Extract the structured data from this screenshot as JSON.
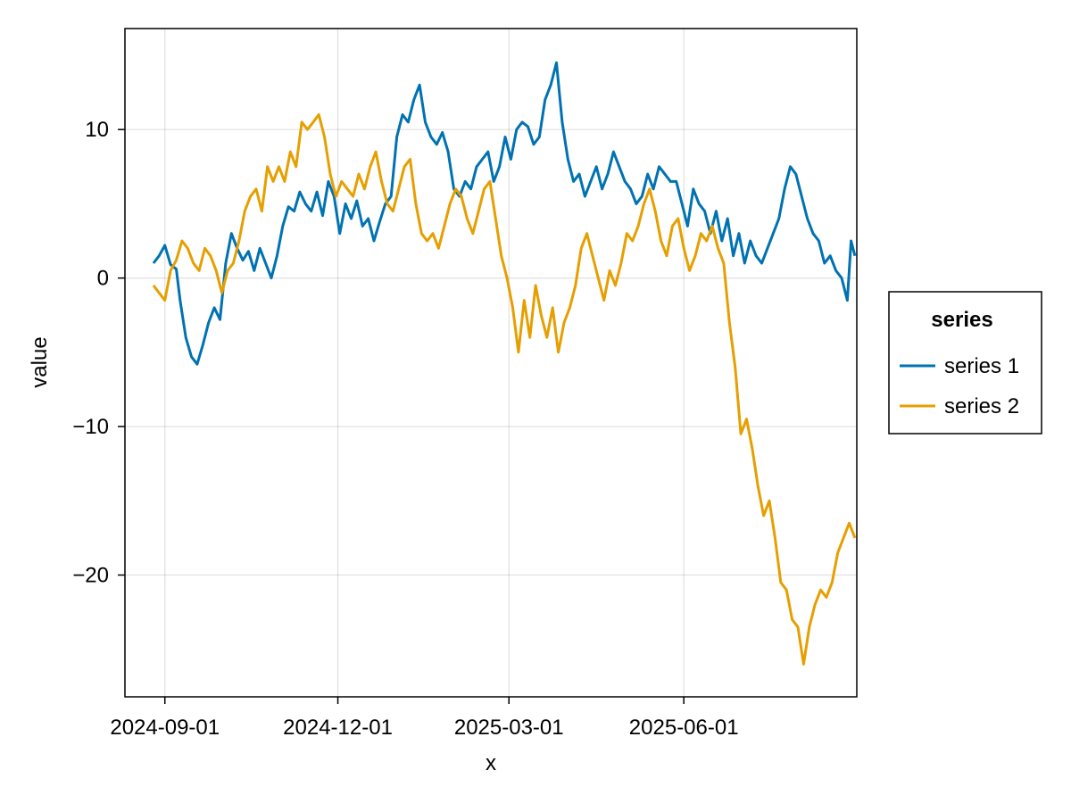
{
  "chart_data": {
    "type": "line",
    "xlabel": "x",
    "ylabel": "value",
    "x_type": "date",
    "xlim": [
      "2024-08-11",
      "2025-08-31"
    ],
    "ylim": [
      -28.2,
      16.8
    ],
    "x_ticks": [
      "2024-09-01",
      "2024-12-01",
      "2025-03-01",
      "2025-06-01"
    ],
    "y_ticks": [
      -20,
      -10,
      0,
      10
    ],
    "y_tick_labels": [
      "−20",
      "−10",
      "0",
      "10"
    ],
    "grid": true,
    "legend": {
      "title": "series",
      "placement": "right"
    },
    "series": [
      {
        "name": "series 1",
        "color": "#0072B2",
        "points": [
          [
            "2024-08-26",
            1.0
          ],
          [
            "2024-08-29",
            1.5
          ],
          [
            "2024-09-01",
            2.2
          ],
          [
            "2024-09-04",
            0.9
          ],
          [
            "2024-09-07",
            0.6
          ],
          [
            "2024-09-09",
            -1.5
          ],
          [
            "2024-09-12",
            -4.0
          ],
          [
            "2024-09-15",
            -5.3
          ],
          [
            "2024-09-18",
            -5.8
          ],
          [
            "2024-09-21",
            -4.5
          ],
          [
            "2024-09-24",
            -3.0
          ],
          [
            "2024-09-27",
            -2.0
          ],
          [
            "2024-09-30",
            -2.8
          ],
          [
            "2024-10-03",
            1.0
          ],
          [
            "2024-10-06",
            3.0
          ],
          [
            "2024-10-09",
            2.0
          ],
          [
            "2024-10-12",
            1.2
          ],
          [
            "2024-10-15",
            1.8
          ],
          [
            "2024-10-18",
            0.5
          ],
          [
            "2024-10-21",
            2.0
          ],
          [
            "2024-10-24",
            1.0
          ],
          [
            "2024-10-27",
            0.0
          ],
          [
            "2024-10-30",
            1.5
          ],
          [
            "2024-11-02",
            3.5
          ],
          [
            "2024-11-05",
            4.8
          ],
          [
            "2024-11-08",
            4.5
          ],
          [
            "2024-11-11",
            5.8
          ],
          [
            "2024-11-14",
            5.0
          ],
          [
            "2024-11-17",
            4.5
          ],
          [
            "2024-11-20",
            5.8
          ],
          [
            "2024-11-23",
            4.2
          ],
          [
            "2024-11-26",
            6.5
          ],
          [
            "2024-11-29",
            5.5
          ],
          [
            "2024-12-02",
            3.0
          ],
          [
            "2024-12-05",
            5.0
          ],
          [
            "2024-12-08",
            4.0
          ],
          [
            "2024-12-11",
            5.2
          ],
          [
            "2024-12-14",
            3.5
          ],
          [
            "2024-12-17",
            4.0
          ],
          [
            "2024-12-20",
            2.5
          ],
          [
            "2024-12-23",
            3.8
          ],
          [
            "2024-12-26",
            5.0
          ],
          [
            "2024-12-29",
            5.5
          ],
          [
            "2025-01-01",
            9.5
          ],
          [
            "2025-01-04",
            11.0
          ],
          [
            "2025-01-07",
            10.5
          ],
          [
            "2025-01-10",
            12.0
          ],
          [
            "2025-01-13",
            13.0
          ],
          [
            "2025-01-16",
            10.5
          ],
          [
            "2025-01-19",
            9.5
          ],
          [
            "2025-01-22",
            9.0
          ],
          [
            "2025-01-25",
            9.8
          ],
          [
            "2025-01-28",
            8.5
          ],
          [
            "2025-01-31",
            6.0
          ],
          [
            "2025-02-03",
            5.5
          ],
          [
            "2025-02-06",
            6.5
          ],
          [
            "2025-02-09",
            6.0
          ],
          [
            "2025-02-12",
            7.5
          ],
          [
            "2025-02-15",
            8.0
          ],
          [
            "2025-02-18",
            8.5
          ],
          [
            "2025-02-21",
            6.5
          ],
          [
            "2025-02-24",
            7.5
          ],
          [
            "2025-02-27",
            9.5
          ],
          [
            "2025-03-02",
            8.0
          ],
          [
            "2025-03-05",
            10.0
          ],
          [
            "2025-03-08",
            10.5
          ],
          [
            "2025-03-11",
            10.2
          ],
          [
            "2025-03-14",
            9.0
          ],
          [
            "2025-03-17",
            9.5
          ],
          [
            "2025-03-20",
            12.0
          ],
          [
            "2025-03-23",
            13.0
          ],
          [
            "2025-03-26",
            14.5
          ],
          [
            "2025-03-29",
            10.5
          ],
          [
            "2025-04-01",
            8.0
          ],
          [
            "2025-04-04",
            6.5
          ],
          [
            "2025-04-07",
            7.0
          ],
          [
            "2025-04-10",
            5.5
          ],
          [
            "2025-04-13",
            6.5
          ],
          [
            "2025-04-16",
            7.5
          ],
          [
            "2025-04-19",
            6.0
          ],
          [
            "2025-04-22",
            7.0
          ],
          [
            "2025-04-25",
            8.5
          ],
          [
            "2025-04-28",
            7.5
          ],
          [
            "2025-05-01",
            6.5
          ],
          [
            "2025-05-04",
            6.0
          ],
          [
            "2025-05-07",
            5.0
          ],
          [
            "2025-05-10",
            5.5
          ],
          [
            "2025-05-13",
            7.0
          ],
          [
            "2025-05-16",
            6.0
          ],
          [
            "2025-05-19",
            7.5
          ],
          [
            "2025-05-22",
            7.0
          ],
          [
            "2025-05-25",
            6.5
          ],
          [
            "2025-05-28",
            6.5
          ],
          [
            "2025-05-31",
            5.0
          ],
          [
            "2025-06-03",
            3.5
          ],
          [
            "2025-06-06",
            6.0
          ],
          [
            "2025-06-09",
            5.0
          ],
          [
            "2025-06-12",
            4.5
          ],
          [
            "2025-06-15",
            3.0
          ],
          [
            "2025-06-18",
            4.5
          ],
          [
            "2025-06-21",
            2.5
          ],
          [
            "2025-06-24",
            4.0
          ],
          [
            "2025-06-27",
            1.5
          ],
          [
            "2025-06-30",
            3.0
          ],
          [
            "2025-07-03",
            1.0
          ],
          [
            "2025-07-06",
            2.5
          ],
          [
            "2025-07-09",
            1.5
          ],
          [
            "2025-07-12",
            1.0
          ],
          [
            "2025-07-15",
            2.0
          ],
          [
            "2025-07-18",
            3.0
          ],
          [
            "2025-07-21",
            4.0
          ],
          [
            "2025-07-24",
            6.0
          ],
          [
            "2025-07-27",
            7.5
          ],
          [
            "2025-07-30",
            7.0
          ],
          [
            "2025-08-02",
            5.5
          ],
          [
            "2025-08-05",
            4.0
          ],
          [
            "2025-08-08",
            3.0
          ],
          [
            "2025-08-11",
            2.5
          ],
          [
            "2025-08-14",
            1.0
          ],
          [
            "2025-08-17",
            1.5
          ],
          [
            "2025-08-20",
            0.5
          ],
          [
            "2025-08-23",
            0.0
          ],
          [
            "2025-08-26",
            -1.5
          ],
          [
            "2025-08-28",
            2.5
          ],
          [
            "2025-08-30",
            1.5
          ]
        ]
      },
      {
        "name": "series 2",
        "color": "#E69F00",
        "points": [
          [
            "2024-08-26",
            -0.5
          ],
          [
            "2024-08-29",
            -1.0
          ],
          [
            "2024-09-01",
            -1.5
          ],
          [
            "2024-09-04",
            0.5
          ],
          [
            "2024-09-07",
            1.2
          ],
          [
            "2024-09-10",
            2.5
          ],
          [
            "2024-09-13",
            2.0
          ],
          [
            "2024-09-16",
            1.0
          ],
          [
            "2024-09-19",
            0.5
          ],
          [
            "2024-09-22",
            2.0
          ],
          [
            "2024-09-25",
            1.5
          ],
          [
            "2024-09-28",
            0.5
          ],
          [
            "2024-10-01",
            -1.0
          ],
          [
            "2024-10-04",
            0.5
          ],
          [
            "2024-10-07",
            1.0
          ],
          [
            "2024-10-10",
            2.5
          ],
          [
            "2024-10-13",
            4.5
          ],
          [
            "2024-10-16",
            5.5
          ],
          [
            "2024-10-19",
            6.0
          ],
          [
            "2024-10-22",
            4.5
          ],
          [
            "2024-10-25",
            7.5
          ],
          [
            "2024-10-28",
            6.5
          ],
          [
            "2024-10-31",
            7.5
          ],
          [
            "2024-11-03",
            6.5
          ],
          [
            "2024-11-06",
            8.5
          ],
          [
            "2024-11-09",
            7.5
          ],
          [
            "2024-11-12",
            10.5
          ],
          [
            "2024-11-15",
            10.0
          ],
          [
            "2024-11-18",
            10.5
          ],
          [
            "2024-11-21",
            11.0
          ],
          [
            "2024-11-24",
            9.5
          ],
          [
            "2024-11-27",
            7.0
          ],
          [
            "2024-11-30",
            5.5
          ],
          [
            "2024-12-03",
            6.5
          ],
          [
            "2024-12-06",
            6.0
          ],
          [
            "2024-12-09",
            5.5
          ],
          [
            "2024-12-12",
            7.0
          ],
          [
            "2024-12-15",
            6.0
          ],
          [
            "2024-12-18",
            7.5
          ],
          [
            "2024-12-21",
            8.5
          ],
          [
            "2024-12-24",
            6.5
          ],
          [
            "2024-12-27",
            5.0
          ],
          [
            "2024-12-30",
            4.5
          ],
          [
            "2025-01-02",
            6.0
          ],
          [
            "2025-01-05",
            7.5
          ],
          [
            "2025-01-08",
            8.0
          ],
          [
            "2025-01-11",
            5.0
          ],
          [
            "2025-01-14",
            3.0
          ],
          [
            "2025-01-17",
            2.5
          ],
          [
            "2025-01-20",
            3.0
          ],
          [
            "2025-01-23",
            2.0
          ],
          [
            "2025-01-26",
            3.5
          ],
          [
            "2025-01-29",
            5.0
          ],
          [
            "2025-02-01",
            6.0
          ],
          [
            "2025-02-04",
            5.5
          ],
          [
            "2025-02-07",
            4.0
          ],
          [
            "2025-02-10",
            3.0
          ],
          [
            "2025-02-13",
            4.5
          ],
          [
            "2025-02-16",
            6.0
          ],
          [
            "2025-02-19",
            6.5
          ],
          [
            "2025-02-22",
            4.0
          ],
          [
            "2025-02-25",
            1.5
          ],
          [
            "2025-02-28",
            0.0
          ],
          [
            "2025-03-03",
            -2.0
          ],
          [
            "2025-03-06",
            -5.0
          ],
          [
            "2025-03-09",
            -1.5
          ],
          [
            "2025-03-12",
            -4.0
          ],
          [
            "2025-03-15",
            -0.5
          ],
          [
            "2025-03-18",
            -2.5
          ],
          [
            "2025-03-21",
            -4.0
          ],
          [
            "2025-03-24",
            -2.0
          ],
          [
            "2025-03-27",
            -5.0
          ],
          [
            "2025-03-30",
            -3.0
          ],
          [
            "2025-04-02",
            -2.0
          ],
          [
            "2025-04-05",
            -0.5
          ],
          [
            "2025-04-08",
            2.0
          ],
          [
            "2025-04-11",
            3.0
          ],
          [
            "2025-04-14",
            1.5
          ],
          [
            "2025-04-17",
            0.0
          ],
          [
            "2025-04-20",
            -1.5
          ],
          [
            "2025-04-23",
            0.5
          ],
          [
            "2025-04-26",
            -0.5
          ],
          [
            "2025-04-29",
            1.0
          ],
          [
            "2025-05-02",
            3.0
          ],
          [
            "2025-05-05",
            2.5
          ],
          [
            "2025-05-08",
            3.5
          ],
          [
            "2025-05-11",
            5.0
          ],
          [
            "2025-05-14",
            6.0
          ],
          [
            "2025-05-17",
            4.5
          ],
          [
            "2025-05-20",
            2.5
          ],
          [
            "2025-05-23",
            1.5
          ],
          [
            "2025-05-26",
            3.5
          ],
          [
            "2025-05-29",
            4.0
          ],
          [
            "2025-06-01",
            2.0
          ],
          [
            "2025-06-04",
            0.5
          ],
          [
            "2025-06-07",
            1.5
          ],
          [
            "2025-06-10",
            3.0
          ],
          [
            "2025-06-13",
            2.5
          ],
          [
            "2025-06-16",
            3.5
          ],
          [
            "2025-06-19",
            2.0
          ],
          [
            "2025-06-22",
            1.0
          ],
          [
            "2025-06-25",
            -3.0
          ],
          [
            "2025-06-28",
            -6.0
          ],
          [
            "2025-07-01",
            -10.5
          ],
          [
            "2025-07-04",
            -9.5
          ],
          [
            "2025-07-07",
            -11.5
          ],
          [
            "2025-07-10",
            -14.0
          ],
          [
            "2025-07-13",
            -16.0
          ],
          [
            "2025-07-16",
            -15.0
          ],
          [
            "2025-07-19",
            -17.5
          ],
          [
            "2025-07-22",
            -20.5
          ],
          [
            "2025-07-25",
            -21.0
          ],
          [
            "2025-07-28",
            -23.0
          ],
          [
            "2025-07-31",
            -23.5
          ],
          [
            "2025-08-03",
            -26.0
          ],
          [
            "2025-08-06",
            -23.5
          ],
          [
            "2025-08-09",
            -22.0
          ],
          [
            "2025-08-12",
            -21.0
          ],
          [
            "2025-08-15",
            -21.5
          ],
          [
            "2025-08-18",
            -20.5
          ],
          [
            "2025-08-21",
            -18.5
          ],
          [
            "2025-08-24",
            -17.5
          ],
          [
            "2025-08-27",
            -16.5
          ],
          [
            "2025-08-30",
            -17.5
          ]
        ]
      }
    ]
  }
}
